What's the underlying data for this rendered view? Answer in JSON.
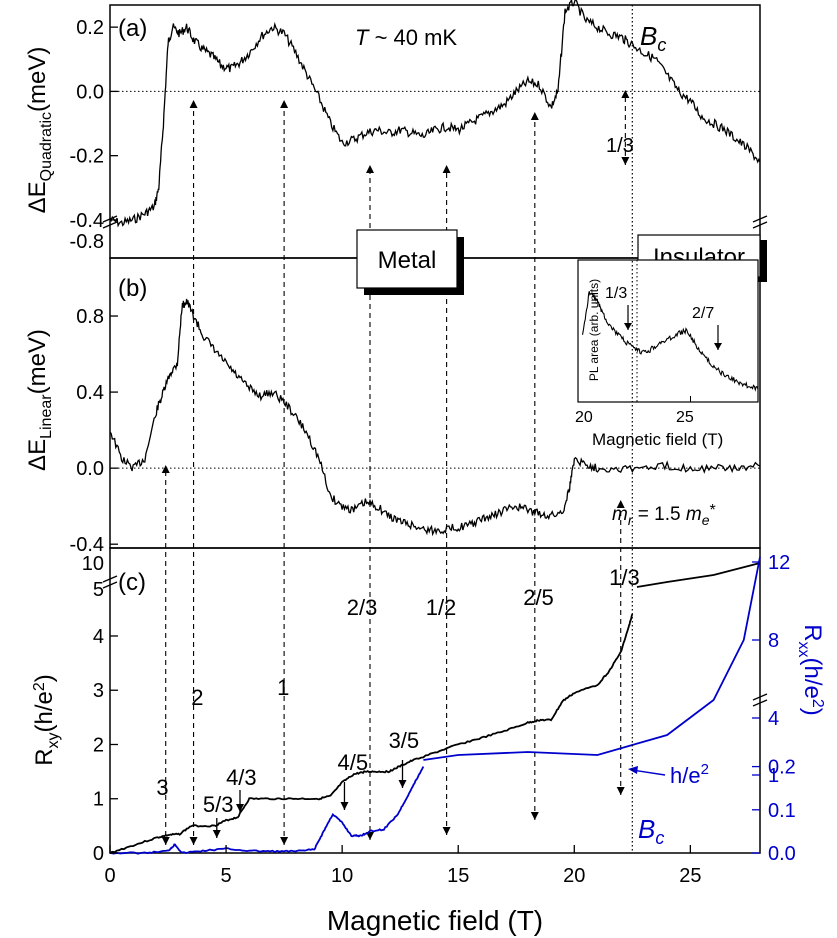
{
  "chart_data": [
    {
      "type": "line",
      "panel_label": "(a)",
      "ylabel_main": "ΔE",
      "ylabel_sub": "Quadratic",
      "ylabel_unit": "(meV)",
      "annotation_temp_italic": "T",
      "annotation_temp_rest": " ~ 40 mK",
      "bc_label": "B",
      "bc_sub": "c",
      "xlim": [
        0,
        28
      ],
      "ylim": [
        -0.45,
        0.3
      ],
      "axis_break_label": "-0.8",
      "yticks": [
        -0.4,
        -0.2,
        0.0,
        0.2
      ],
      "ytick_labels": [
        "-0.4",
        "-0.2",
        "0.0",
        "0.2"
      ],
      "reference_line_y": 0.0,
      "series": [
        {
          "x": [
            0,
            0.5,
            1,
            1.5,
            1.9,
            2.1,
            2.3,
            2.5,
            2.7,
            3.0,
            3.3,
            3.6,
            4.0,
            4.4,
            4.8,
            5.2,
            5.6,
            6.0,
            6.5,
            7.0,
            7.5,
            8.0,
            8.5,
            9.0,
            9.5,
            10.0,
            10.5,
            11.0,
            11.5,
            12.0,
            12.5,
            13.0,
            13.5,
            14.0,
            14.5,
            15.0,
            15.5,
            16.0,
            16.5,
            17.0,
            17.5,
            18.0,
            18.5,
            19.0,
            19.3,
            19.6,
            20.0,
            20.5,
            21.0,
            21.5,
            22.0,
            22.4,
            23.0,
            23.5,
            24.0,
            24.5,
            25.0,
            25.5,
            26.0,
            26.5,
            27.0,
            27.5,
            28.0
          ],
          "y": [
            -0.4,
            -0.41,
            -0.4,
            -0.38,
            -0.36,
            -0.3,
            -0.1,
            0.15,
            0.2,
            0.18,
            0.2,
            0.16,
            0.13,
            0.11,
            0.08,
            0.07,
            0.09,
            0.12,
            0.17,
            0.2,
            0.18,
            0.12,
            0.05,
            -0.02,
            -0.1,
            -0.16,
            -0.15,
            -0.13,
            -0.12,
            -0.13,
            -0.12,
            -0.13,
            -0.14,
            -0.12,
            -0.11,
            -0.12,
            -0.1,
            -0.08,
            -0.06,
            -0.04,
            0.0,
            0.03,
            0.02,
            -0.05,
            0.0,
            0.25,
            0.28,
            0.22,
            0.2,
            0.18,
            0.17,
            0.15,
            0.12,
            0.1,
            0.05,
            0.0,
            -0.03,
            -0.08,
            -0.1,
            -0.12,
            -0.15,
            -0.18,
            -0.22
          ]
        }
      ],
      "arrows": [
        {
          "x": 3.6,
          "from_y": -0.42,
          "to_y": -0.05
        },
        {
          "x": 7.5,
          "from_y": -0.42,
          "to_y": 0.0
        },
        {
          "x": 11.2,
          "from_y": -0.42,
          "to_y": -0.17
        },
        {
          "x": 14.5,
          "from_y": -0.42,
          "to_y": -0.17
        },
        {
          "x": 18.3,
          "from_y": -0.42,
          "to_y": -0.04
        },
        {
          "x": 22.2,
          "from_y": -0.1,
          "to_y": 0.03
        }
      ],
      "arrow_label_1_3": "1/3"
    },
    {
      "type": "line",
      "panel_label": "(b)",
      "ylabel_main": "ΔE",
      "ylabel_sub": "Linear",
      "ylabel_unit": "(meV)",
      "xlim": [
        0,
        28
      ],
      "ylim": [
        -0.42,
        1.0
      ],
      "yticks": [
        -0.4,
        0.0,
        0.4,
        0.8
      ],
      "ytick_labels": [
        "-0.4",
        "0.0",
        "0.4",
        "0.8"
      ],
      "reference_line_y": 0.0,
      "annotation_mass_mr": "m",
      "annotation_mass_r": "r",
      "annotation_mass_eq": " = 1.5 ",
      "annotation_mass_me": "m",
      "annotation_mass_e": "e",
      "annotation_mass_star": "*",
      "box_metal": "Metal",
      "box_insulator": "Insulator",
      "series": [
        {
          "x": [
            0,
            0.5,
            1.0,
            1.5,
            2.0,
            2.3,
            2.6,
            2.9,
            3.1,
            3.3,
            3.6,
            4.0,
            4.5,
            5.0,
            5.5,
            6.0,
            6.5,
            7.0,
            7.5,
            8.0,
            8.5,
            9.0,
            9.5,
            10.0,
            10.5,
            11.0,
            11.5,
            12.0,
            12.5,
            13.0,
            13.5,
            14.0,
            14.5,
            15.0,
            15.5,
            16.0,
            16.5,
            17.0,
            17.5,
            18.0,
            18.5,
            19.0,
            19.5,
            19.8,
            20.0,
            20.5,
            21.0,
            22.0,
            23.0,
            24.0,
            25.0,
            26.0,
            27.0,
            28.0
          ],
          "y": [
            0.2,
            0.05,
            0.0,
            0.05,
            0.3,
            0.4,
            0.5,
            0.55,
            0.85,
            0.88,
            0.8,
            0.7,
            0.62,
            0.55,
            0.48,
            0.42,
            0.38,
            0.4,
            0.35,
            0.27,
            0.18,
            0.05,
            -0.15,
            -0.2,
            -0.22,
            -0.18,
            -0.2,
            -0.25,
            -0.28,
            -0.3,
            -0.32,
            -0.33,
            -0.32,
            -0.31,
            -0.3,
            -0.27,
            -0.25,
            -0.22,
            -0.2,
            -0.22,
            -0.24,
            -0.25,
            -0.23,
            -0.1,
            0.05,
            0.02,
            0.0,
            0.0,
            0.0,
            0.01,
            0.0,
            0.0,
            0.0,
            0.01
          ]
        }
      ],
      "arrows": [
        {
          "x": 2.4,
          "from_y": -0.42,
          "to_y": 0.28
        },
        {
          "x": 22.0,
          "from_y": -0.42,
          "to_y": -0.03
        }
      ]
    },
    {
      "type": "line",
      "panel_label": "(c)",
      "xlabel": "Magnetic field (T)",
      "xlim": [
        0,
        28
      ],
      "xticks": [
        0,
        5,
        10,
        15,
        20,
        25
      ],
      "xtick_labels": [
        "0",
        "5",
        "10",
        "15",
        "20",
        "25"
      ],
      "ylabel_left_main": "R",
      "ylabel_left_sub": "xy",
      "ylabel_left_unit": "(h/e",
      "ylabel_left_sup": "2",
      "ylabel_left_close": ")",
      "ylim_left": [
        0,
        4.7
      ],
      "yticks_left": [
        0,
        1,
        2,
        3,
        4
      ],
      "ytick_labels_left": [
        "0",
        "1",
        "2",
        "3",
        "4"
      ],
      "ytick_labels_left_break": [
        "5",
        "10"
      ],
      "ylabel_right_main": "R",
      "ylabel_right_sub": "xx",
      "ylabel_right_unit": "(h/e",
      "ylabel_right_sup": "2",
      "ylabel_right_close": ")",
      "ylim_right": [
        0,
        0.25
      ],
      "yticks_right": [
        0.0,
        0.1,
        0.2
      ],
      "ytick_labels_right": [
        "0.0",
        "0.1",
        "0.2"
      ],
      "ytick_labels_right_upper": [
        "1",
        "4",
        "8",
        "12"
      ],
      "he2_label": "h/e",
      "he2_sup": "2",
      "bc_label": "B",
      "bc_sub": "c",
      "bc_x": 22.5,
      "plateau_labels": [
        "3",
        "2",
        "1",
        "2/3",
        "1/2",
        "2/5",
        "1/3",
        "5/3",
        "4/3",
        "4/5",
        "3/5"
      ],
      "series": [
        {
          "name": "",
          "x": [
            0,
            1.0,
            2.0,
            2.5,
            3.0,
            3.5,
            4.5,
            5.0,
            5.5,
            6.0,
            7.0,
            8.0,
            9.0,
            9.5,
            10.0,
            10.5,
            11.0,
            11.5,
            12.0,
            12.5,
            13.0,
            14.0,
            15.0,
            16.0,
            17.0,
            18.0,
            18.5,
            19.0,
            19.5,
            20.0,
            21.0,
            21.5,
            22.0,
            22.3,
            22.5
          ],
          "y": [
            0,
            0.14,
            0.28,
            0.33,
            0.35,
            0.5,
            0.5,
            0.6,
            0.66,
            1.0,
            1.0,
            1.0,
            1.0,
            1.05,
            1.3,
            1.45,
            1.5,
            1.5,
            1.5,
            1.6,
            1.7,
            1.85,
            2.0,
            2.12,
            2.25,
            2.4,
            2.45,
            2.45,
            2.8,
            2.95,
            3.1,
            3.35,
            3.7,
            4.1,
            4.4
          ]
        },
        {
          "name": "",
          "x": [
            0,
            1.5,
            2.5,
            2.8,
            3.1,
            4.0,
            5.0,
            6.0,
            7.0,
            8.0,
            8.8,
            9.2,
            9.6,
            10.0,
            10.4,
            10.8,
            11.2,
            11.8,
            12.4,
            12.8,
            13.2,
            13.5
          ],
          "y": [
            0,
            0.0,
            0.005,
            0.02,
            0.0,
            0.005,
            0.01,
            0.005,
            0.004,
            0.004,
            0.008,
            0.05,
            0.09,
            0.07,
            0.04,
            0.04,
            0.05,
            0.055,
            0.09,
            0.13,
            0.17,
            0.2
          ]
        }
      ]
    }
  ],
  "inset": {
    "ylabel": "PL area (arb. units)",
    "xlabel": "Magnetic field (T)",
    "xlim": [
      20,
      28
    ],
    "xticks": [
      20,
      25
    ],
    "xtick_labels": [
      "20",
      "25"
    ],
    "label_1_3": "1/3",
    "label_2_7": "2/7",
    "series": {
      "x": [
        20.2,
        20.5,
        20.8,
        21.0,
        21.3,
        21.6,
        22.0,
        22.4,
        22.8,
        23.2,
        23.6,
        24.0,
        24.4,
        24.8,
        25.2,
        25.6,
        26.0,
        26.4,
        26.8,
        27.2,
        27.6,
        28.0
      ],
      "y": [
        0.5,
        0.85,
        0.8,
        0.72,
        0.62,
        0.55,
        0.48,
        0.42,
        0.38,
        0.4,
        0.45,
        0.48,
        0.52,
        0.55,
        0.45,
        0.35,
        0.28,
        0.22,
        0.18,
        0.15,
        0.12,
        0.1
      ]
    }
  },
  "colors": {
    "axis": "#000000",
    "rxx": "#0000cc"
  }
}
